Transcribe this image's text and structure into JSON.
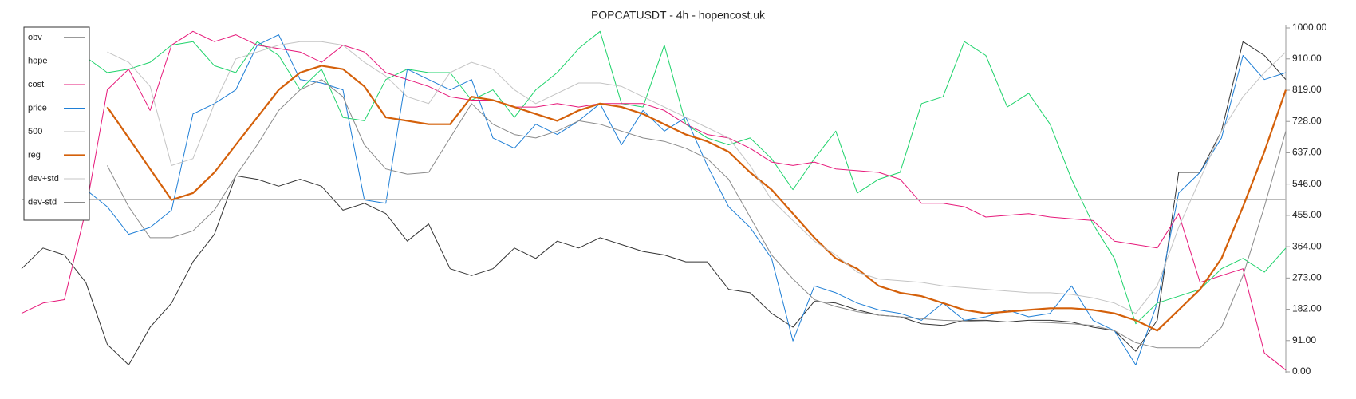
{
  "chart_data": {
    "type": "line",
    "title": "POPCATUSDT - 4h - hopencost.uk",
    "ylim": [
      0,
      1000
    ],
    "yticks": [
      {
        "value": 0,
        "label": "0.00"
      },
      {
        "value": 91,
        "label": "91.00"
      },
      {
        "value": 182,
        "label": "182.00"
      },
      {
        "value": 273,
        "label": "273.00"
      },
      {
        "value": 364,
        "label": "364.00"
      },
      {
        "value": 455,
        "label": "455.00"
      },
      {
        "value": 546,
        "label": "546.00"
      },
      {
        "value": 637,
        "label": "637.00"
      },
      {
        "value": 728,
        "label": "728.00"
      },
      {
        "value": 819,
        "label": "819.00"
      },
      {
        "value": 910,
        "label": "910.00"
      },
      {
        "value": 1000,
        "label": "1000.00"
      }
    ],
    "legend": "upper left",
    "series": [
      {
        "name": "obv",
        "color": "#333333",
        "width": 1,
        "values": [
          300,
          360,
          340,
          260,
          80,
          20,
          130,
          200,
          320,
          400,
          570,
          560,
          540,
          560,
          540,
          470,
          490,
          460,
          380,
          430,
          300,
          280,
          300,
          360,
          330,
          380,
          360,
          390,
          370,
          350,
          340,
          320,
          320,
          240,
          230,
          170,
          130,
          205,
          200,
          180,
          165,
          160,
          140,
          135,
          150,
          150,
          145,
          150,
          150,
          145,
          130,
          120,
          60,
          150,
          580,
          580,
          700,
          960,
          920,
          850
        ]
      },
      {
        "name": "hope",
        "color": "#1fd36b",
        "width": 1,
        "values": [
          null,
          null,
          null,
          915,
          870,
          880,
          900,
          950,
          960,
          890,
          870,
          960,
          920,
          820,
          880,
          740,
          730,
          850,
          880,
          870,
          870,
          790,
          820,
          740,
          820,
          870,
          940,
          990,
          780,
          770,
          950,
          720,
          680,
          660,
          680,
          620,
          530,
          620,
          700,
          520,
          560,
          580,
          780,
          800,
          960,
          920,
          770,
          810,
          720,
          560,
          430,
          330,
          140,
          200,
          220,
          240,
          300,
          330,
          290,
          360
        ]
      },
      {
        "name": "cost",
        "color": "#e6197a",
        "width": 1,
        "values": [
          170,
          200,
          210,
          470,
          820,
          880,
          760,
          950,
          990,
          960,
          980,
          950,
          940,
          930,
          900,
          950,
          930,
          870,
          850,
          830,
          800,
          790,
          790,
          770,
          770,
          780,
          770,
          780,
          780,
          780,
          760,
          720,
          690,
          680,
          650,
          610,
          600,
          610,
          590,
          585,
          580,
          560,
          490,
          490,
          480,
          450,
          455,
          460,
          450,
          445,
          440,
          380,
          370,
          360,
          460,
          260,
          280,
          300,
          55,
          5
        ]
      },
      {
        "name": "price",
        "color": "#1f7fd6",
        "width": 1,
        "values": [
          null,
          null,
          null,
          530,
          480,
          400,
          420,
          470,
          750,
          780,
          820,
          950,
          980,
          850,
          840,
          820,
          500,
          490,
          880,
          850,
          820,
          850,
          680,
          650,
          720,
          690,
          730,
          780,
          660,
          760,
          700,
          740,
          600,
          480,
          420,
          330,
          90,
          250,
          230,
          200,
          180,
          170,
          150,
          200,
          150,
          160,
          180,
          160,
          170,
          250,
          150,
          120,
          20,
          200,
          520,
          580,
          680,
          920,
          850,
          870
        ]
      },
      {
        "name": "500",
        "color": "#bbbbbb",
        "width": 1,
        "values": [
          500,
          500,
          500,
          500,
          500,
          500,
          500,
          500,
          500,
          500,
          500,
          500,
          500,
          500,
          500,
          500,
          500,
          500,
          500,
          500,
          500,
          500,
          500,
          500,
          500,
          500,
          500,
          500,
          500,
          500,
          500,
          500,
          500,
          500,
          500,
          500,
          500,
          500,
          500,
          500,
          500,
          500,
          500,
          500,
          500,
          500,
          500,
          500,
          500,
          500,
          500,
          500,
          500,
          500,
          500,
          500,
          500,
          500,
          500,
          500
        ]
      },
      {
        "name": "reg",
        "color": "#d4600a",
        "width": 2.2,
        "values": [
          null,
          null,
          null,
          null,
          770,
          680,
          590,
          500,
          520,
          580,
          660,
          740,
          820,
          870,
          890,
          880,
          830,
          740,
          730,
          720,
          720,
          800,
          790,
          770,
          750,
          730,
          760,
          780,
          770,
          750,
          720,
          690,
          670,
          640,
          580,
          530,
          460,
          390,
          330,
          300,
          250,
          230,
          220,
          200,
          180,
          170,
          175,
          180,
          185,
          185,
          180,
          170,
          150,
          120,
          180,
          240,
          330,
          480,
          640,
          820
        ]
      },
      {
        "name": "dev+std",
        "color": "#c4c4c4",
        "width": 1,
        "values": [
          null,
          null,
          null,
          null,
          930,
          900,
          830,
          600,
          620,
          780,
          910,
          930,
          950,
          960,
          960,
          950,
          900,
          860,
          800,
          780,
          870,
          900,
          880,
          820,
          780,
          810,
          840,
          840,
          830,
          800,
          770,
          740,
          710,
          680,
          600,
          500,
          440,
          380,
          340,
          290,
          270,
          265,
          260,
          250,
          245,
          240,
          235,
          230,
          230,
          225,
          215,
          200,
          170,
          250,
          420,
          560,
          700,
          800,
          870,
          930
        ]
      },
      {
        "name": "dev-std",
        "color": "#8a8a8a",
        "width": 1,
        "values": [
          null,
          null,
          null,
          null,
          600,
          480,
          390,
          390,
          410,
          470,
          570,
          660,
          760,
          820,
          850,
          800,
          660,
          590,
          575,
          580,
          680,
          780,
          720,
          690,
          680,
          700,
          730,
          720,
          700,
          680,
          670,
          650,
          620,
          560,
          450,
          340,
          270,
          210,
          190,
          175,
          165,
          160,
          155,
          150,
          148,
          146,
          145,
          145,
          143,
          140,
          135,
          120,
          85,
          70,
          70,
          70,
          130,
          280,
          480,
          700
        ]
      }
    ]
  }
}
